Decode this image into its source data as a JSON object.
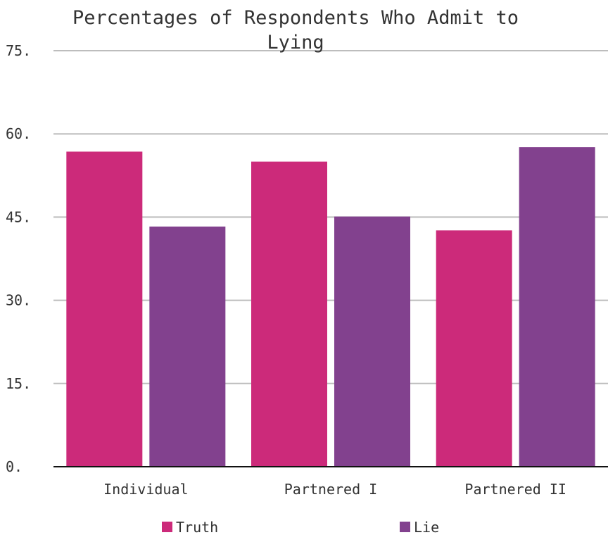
{
  "chart_data": {
    "type": "bar",
    "title_lines": [
      "Percentages of Respondents Who Admit to",
      "Lying"
    ],
    "xlabel": "",
    "ylabel": "",
    "categories": [
      "Individual",
      "Partnered I",
      "Partnered II"
    ],
    "series": [
      {
        "name": "Truth",
        "color": "#cc2a7a",
        "values": [
          56.8,
          55.0,
          42.6
        ]
      },
      {
        "name": "Lie",
        "color": "#82418e",
        "values": [
          43.3,
          45.1,
          57.6
        ]
      }
    ],
    "ylim": [
      0,
      75
    ],
    "yticks": [
      0,
      15,
      30,
      45,
      60,
      75
    ],
    "ytick_labels": [
      "0.",
      "15.",
      "30.",
      "45.",
      "60.",
      "75."
    ],
    "grid": true,
    "legend_position": "bottom"
  }
}
